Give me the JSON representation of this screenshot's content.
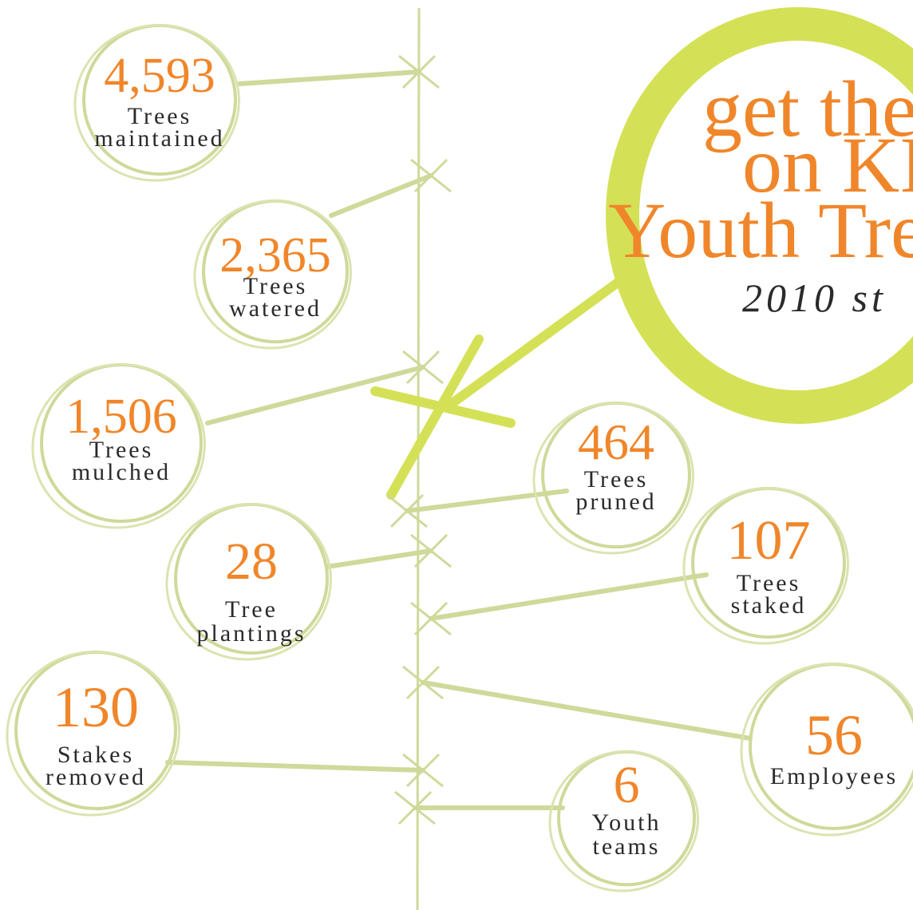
{
  "title": {
    "lines": [
      "get the",
      "on KI",
      "Youth Tre"
    ],
    "subtitle": "2010 st"
  },
  "stats": [
    {
      "number": "4,593",
      "label": [
        "Trees",
        "maintained"
      ]
    },
    {
      "number": "2,365",
      "label": [
        "Trees",
        "watered"
      ]
    },
    {
      "number": "1,506",
      "label": [
        "Trees",
        "mulched"
      ]
    },
    {
      "number": "28",
      "label": [
        "Tree",
        "plantings"
      ]
    },
    {
      "number": "130",
      "label": [
        "Stakes",
        "removed"
      ]
    },
    {
      "number": "464",
      "label": [
        "Trees",
        "pruned"
      ]
    },
    {
      "number": "107",
      "label": [
        "Trees",
        "staked"
      ]
    },
    {
      "number": "56",
      "label": [
        "Employees"
      ]
    },
    {
      "number": "6",
      "label": [
        "Youth",
        "teams"
      ]
    }
  ]
}
